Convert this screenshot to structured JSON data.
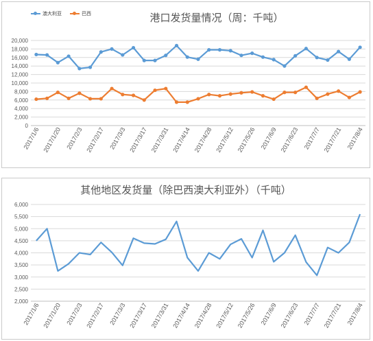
{
  "chart_data": [
    {
      "type": "line",
      "title": "港口发货量情况（周：千吨）",
      "x": [
        "2017/1/6",
        "2017/1/13",
        "2017/1/20",
        "2017/1/27",
        "2017/2/3",
        "2017/2/10",
        "2017/2/17",
        "2017/2/24",
        "2017/3/3",
        "2017/3/10",
        "2017/3/17",
        "2017/3/24",
        "2017/3/31",
        "2017/4/7",
        "2017/4/14",
        "2017/4/21",
        "2017/4/28",
        "2017/5/5",
        "2017/5/12",
        "2017/5/19",
        "2017/5/26",
        "2017/6/2",
        "2017/6/9",
        "2017/6/16",
        "2017/6/23",
        "2017/6/30",
        "2017/7/7",
        "2017/7/14",
        "2017/7/21",
        "2017/7/28",
        "2017/8/4"
      ],
      "x_tick_labels": [
        "2017/1/6",
        "2017/1/20",
        "2017/2/3",
        "2017/2/17",
        "2017/3/3",
        "2017/3/17",
        "2017/3/31",
        "2017/4/14",
        "2017/4/28",
        "2017/5/12",
        "2017/5/26",
        "2017/6/9",
        "2017/6/23",
        "2017/7/7",
        "2017/7/21",
        "2017/8/4"
      ],
      "ylim": [
        0,
        20000
      ],
      "y_ticks": [
        "0",
        "2,000",
        "4,000",
        "6,000",
        "8,000",
        "10,000",
        "12,000",
        "14,000",
        "16,000",
        "18,000",
        "20,000"
      ],
      "grid": true,
      "legend": "top-left",
      "series": [
        {
          "name": "澳大利亚",
          "color": "#5b9bd5",
          "values": [
            16700,
            16600,
            14800,
            16300,
            13400,
            13700,
            17300,
            18000,
            16600,
            18300,
            15300,
            15300,
            16500,
            18800,
            16100,
            15600,
            17800,
            17800,
            17600,
            16500,
            17000,
            16100,
            15500,
            14000,
            16400,
            18100,
            16000,
            15400,
            17400,
            15600,
            18400
          ]
        },
        {
          "name": "巴西",
          "color": "#ed7d31",
          "values": [
            6200,
            6400,
            7800,
            6400,
            7600,
            6300,
            6300,
            8700,
            7300,
            7100,
            6000,
            8300,
            8700,
            5500,
            5500,
            6300,
            7300,
            7000,
            7400,
            7700,
            7900,
            7000,
            6200,
            7800,
            7800,
            9000,
            6400,
            7400,
            8100,
            6600,
            7900
          ]
        }
      ]
    },
    {
      "type": "line",
      "title": "其他地区发货量（除巴西澳大利亚外）（千吨）",
      "x": [
        "2017/1/6",
        "2017/1/13",
        "2017/1/20",
        "2017/1/27",
        "2017/2/3",
        "2017/2/10",
        "2017/2/17",
        "2017/2/24",
        "2017/3/3",
        "2017/3/10",
        "2017/3/17",
        "2017/3/24",
        "2017/3/31",
        "2017/4/7",
        "2017/4/14",
        "2017/4/21",
        "2017/4/28",
        "2017/5/5",
        "2017/5/12",
        "2017/5/19",
        "2017/5/26",
        "2017/6/2",
        "2017/6/9",
        "2017/6/16",
        "2017/6/23",
        "2017/6/30",
        "2017/7/7",
        "2017/7/14",
        "2017/7/21",
        "2017/7/28",
        "2017/8/4"
      ],
      "x_tick_labels": [
        "2017/1/6",
        "2017/1/20",
        "2017/2/3",
        "2017/2/17",
        "2017/3/3",
        "2017/3/17",
        "2017/3/31",
        "2017/4/14",
        "2017/4/28",
        "2017/5/12",
        "2017/5/26",
        "2017/6/9",
        "2017/6/23",
        "2017/7/7",
        "2017/7/21",
        "2017/8/4"
      ],
      "ylim": [
        2000,
        6000
      ],
      "y_ticks": [
        "2,000",
        "2,500",
        "3,000",
        "3,500",
        "4,000",
        "4,500",
        "5,000",
        "5,500",
        "6,000"
      ],
      "grid": true,
      "series": [
        {
          "color": "#5b9bd5",
          "values": [
            4500,
            5000,
            3250,
            3550,
            4000,
            3930,
            4430,
            4020,
            3480,
            4600,
            4400,
            4370,
            4560,
            5300,
            3800,
            3250,
            4000,
            3750,
            4350,
            4580,
            3800,
            4930,
            3630,
            4000,
            4730,
            3620,
            3070,
            4220,
            4000,
            4430,
            5600
          ]
        }
      ]
    }
  ]
}
